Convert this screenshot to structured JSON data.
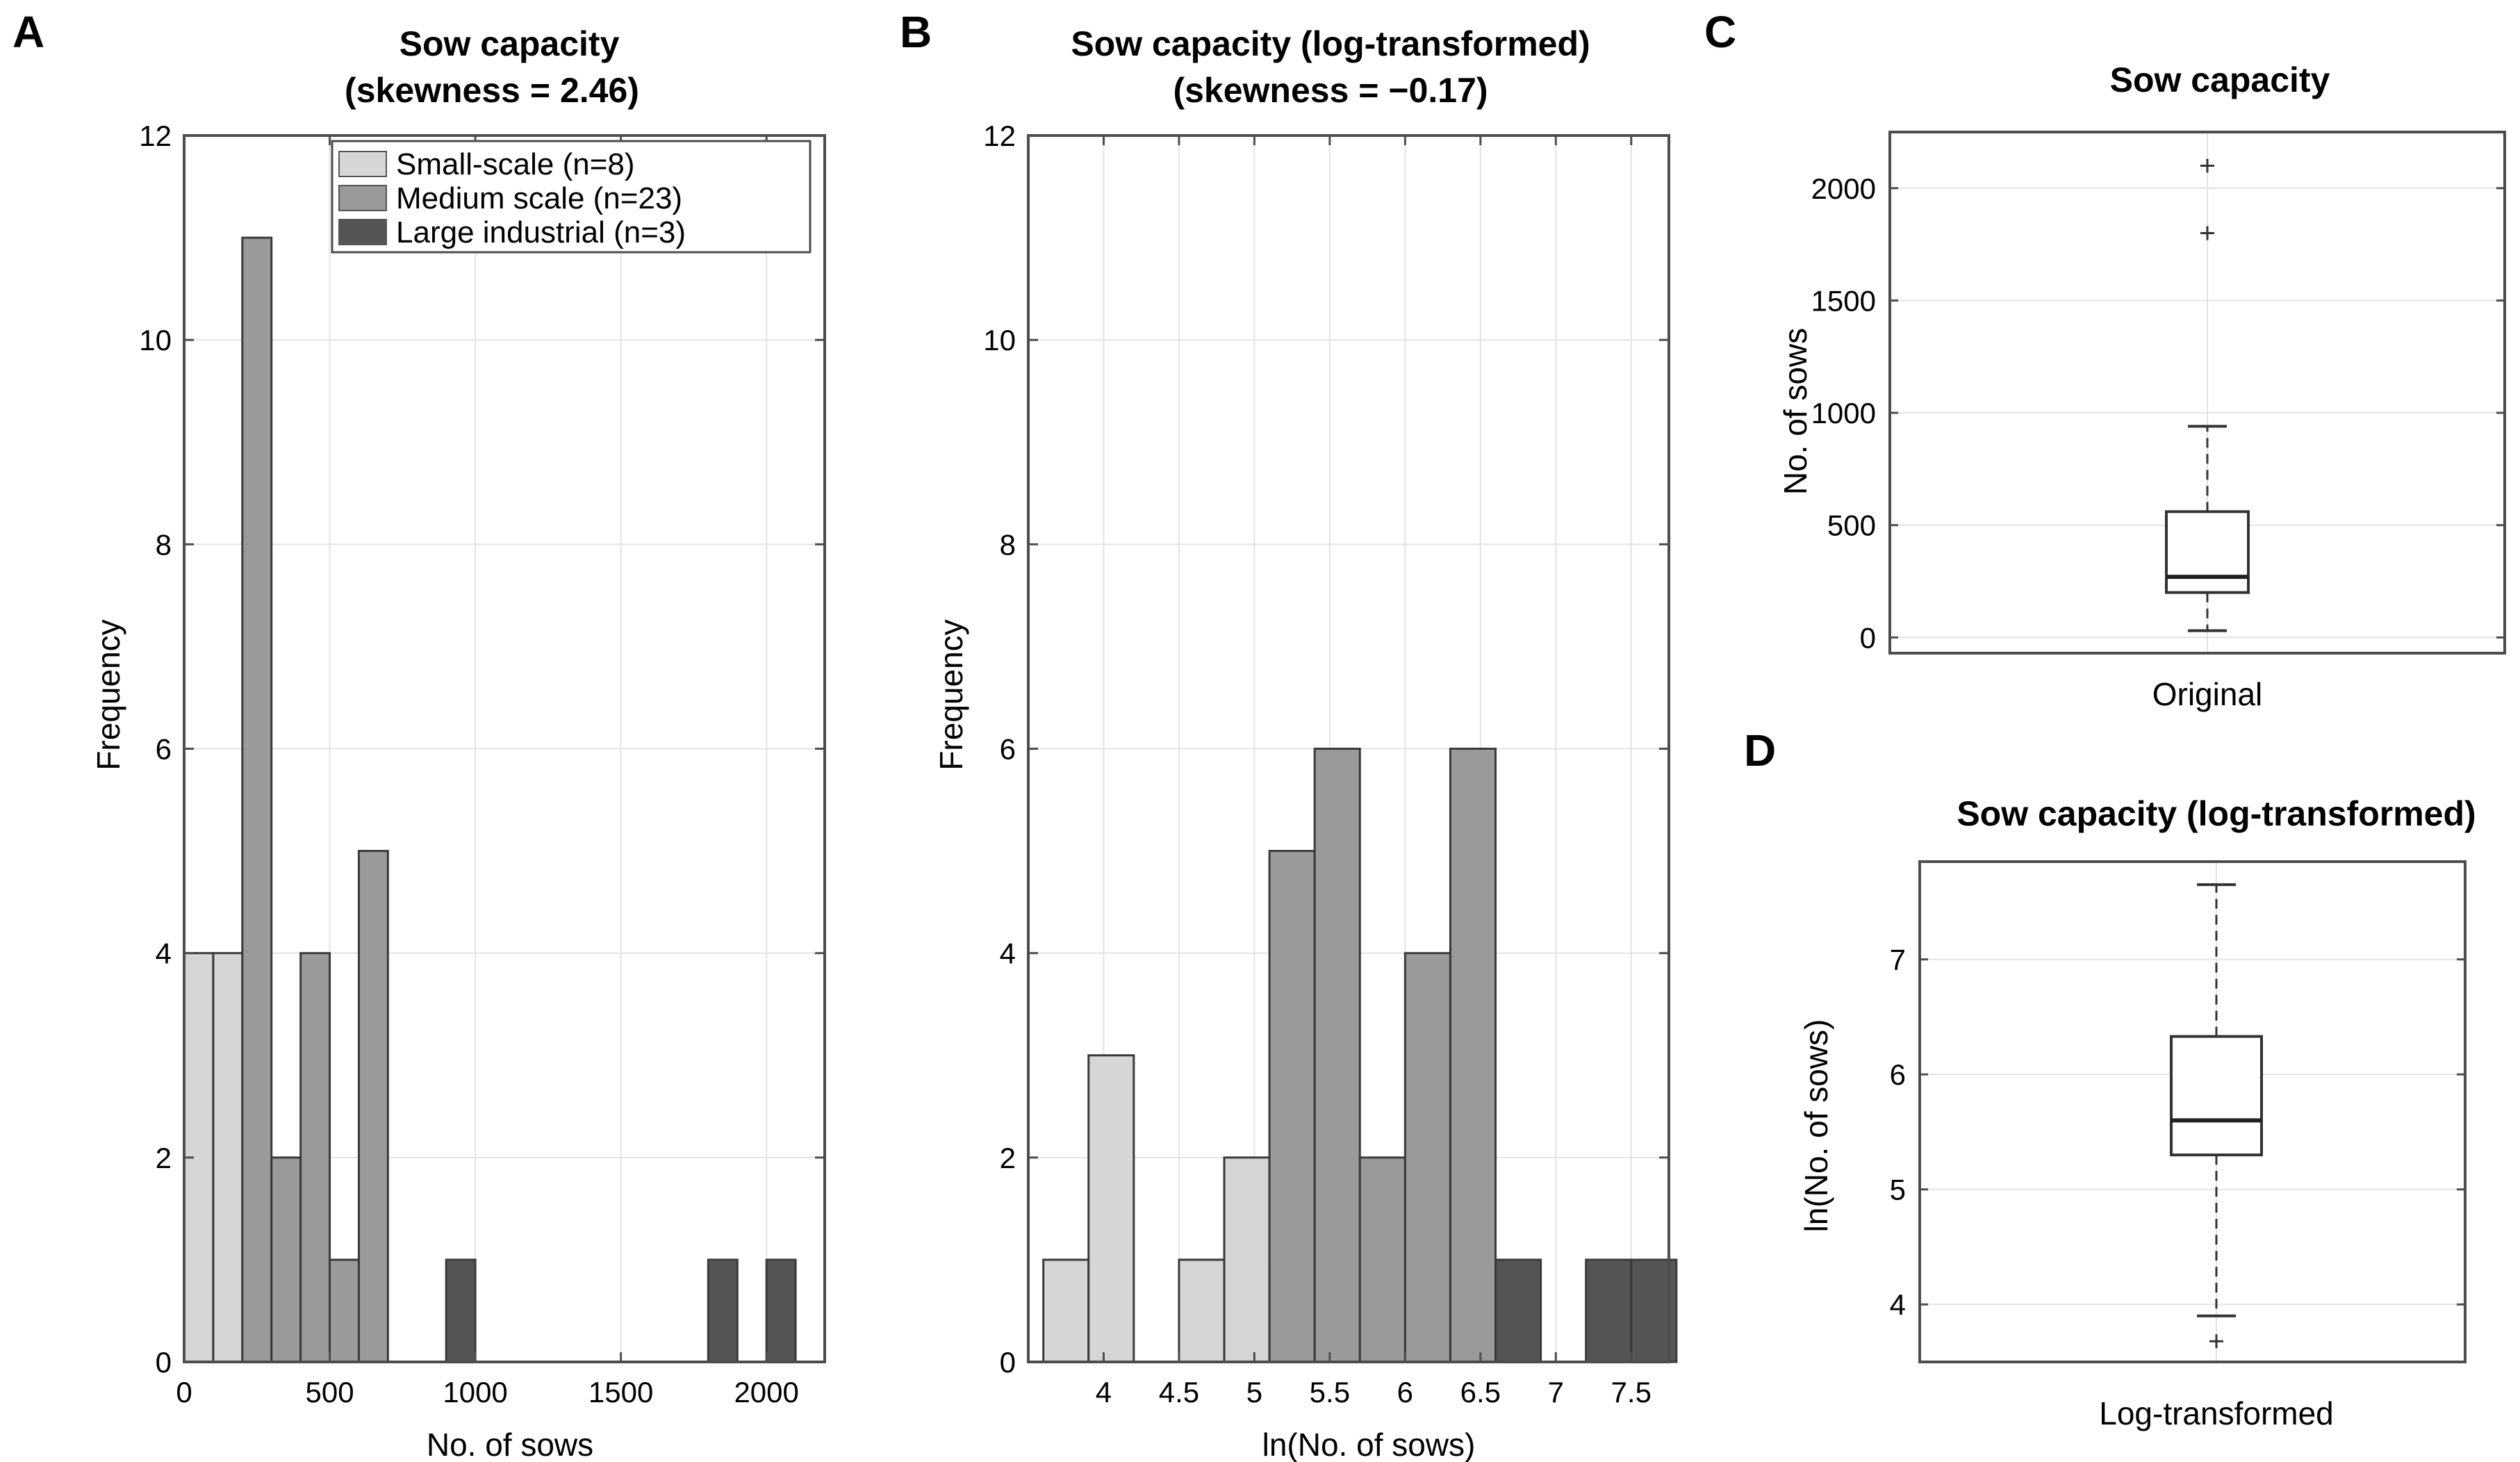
{
  "colors": {
    "small_scale": "#d6d6d6",
    "medium_scale": "#9a9a9a",
    "large_industrial": "#555555",
    "grid": "#e3e3e3",
    "axis": "#4d4d4d"
  },
  "chart_data": [
    {
      "panel": "A",
      "type": "bar",
      "title": "Sow capacity",
      "subtitle": "(skewness = 2.46)",
      "xlabel": "No. of sows",
      "ylabel": "Frequency",
      "xlim": [
        0,
        2200
      ],
      "ylim": [
        0,
        12
      ],
      "xticks": [
        0,
        500,
        1000,
        1500,
        2000
      ],
      "yticks": [
        0,
        2,
        4,
        6,
        8,
        10,
        12
      ],
      "grid": true,
      "legend_position": "top-right",
      "legend": [
        {
          "label": "Small-scale (n=8)",
          "group": "small_scale"
        },
        {
          "label": "Medium scale (n=23)",
          "group": "medium_scale"
        },
        {
          "label": "Large industrial (n=3)",
          "group": "large_industrial"
        }
      ],
      "bars": [
        {
          "x0": 0,
          "x1": 100,
          "value": 4,
          "group": "small_scale"
        },
        {
          "x0": 100,
          "x1": 200,
          "value": 4,
          "group": "small_scale"
        },
        {
          "x0": 200,
          "x1": 300,
          "value": 11,
          "group": "medium_scale"
        },
        {
          "x0": 300,
          "x1": 400,
          "value": 2,
          "group": "medium_scale"
        },
        {
          "x0": 400,
          "x1": 500,
          "value": 4,
          "group": "medium_scale"
        },
        {
          "x0": 500,
          "x1": 600,
          "value": 1,
          "group": "medium_scale"
        },
        {
          "x0": 600,
          "x1": 700,
          "value": 5,
          "group": "medium_scale"
        },
        {
          "x0": 900,
          "x1": 1000,
          "value": 1,
          "group": "large_industrial"
        },
        {
          "x0": 1800,
          "x1": 1900,
          "value": 1,
          "group": "large_industrial"
        },
        {
          "x0": 2000,
          "x1": 2100,
          "value": 1,
          "group": "large_industrial"
        }
      ]
    },
    {
      "panel": "B",
      "type": "bar",
      "title": "Sow capacity (log-transformed)",
      "subtitle": "(skewness = −0.17)",
      "xlabel": "ln(No. of sows)",
      "ylabel": "Frequency",
      "xlim": [
        3.5,
        7.75
      ],
      "ylim": [
        0,
        12
      ],
      "xticks": [
        4,
        4.5,
        5,
        5.5,
        6,
        6.5,
        7,
        7.5
      ],
      "xtick_labels": [
        "4",
        "4.5",
        "5",
        "5.5",
        "6",
        "6.5",
        "7",
        "7.5"
      ],
      "yticks": [
        0,
        2,
        4,
        6,
        8,
        10,
        12
      ],
      "grid": true,
      "bars": [
        {
          "x0": 3.6,
          "x1": 3.9,
          "value": 1,
          "group": "small_scale"
        },
        {
          "x0": 3.9,
          "x1": 4.2,
          "value": 3,
          "group": "small_scale"
        },
        {
          "x0": 4.5,
          "x1": 4.8,
          "value": 1,
          "group": "small_scale"
        },
        {
          "x0": 4.8,
          "x1": 5.1,
          "value": 2,
          "group": "small_scale"
        },
        {
          "x0": 5.1,
          "x1": 5.4,
          "value": 1,
          "group": "small_scale"
        },
        {
          "x0": 5.1,
          "x1": 5.4,
          "value": 5,
          "group": "medium_scale"
        },
        {
          "x0": 5.4,
          "x1": 5.7,
          "value": 6,
          "group": "medium_scale"
        },
        {
          "x0": 5.7,
          "x1": 6.0,
          "value": 2,
          "group": "medium_scale"
        },
        {
          "x0": 6.0,
          "x1": 6.3,
          "value": 4,
          "group": "medium_scale"
        },
        {
          "x0": 6.3,
          "x1": 6.6,
          "value": 6,
          "group": "medium_scale"
        },
        {
          "x0": 6.6,
          "x1": 6.9,
          "value": 1,
          "group": "large_industrial"
        },
        {
          "x0": 7.2,
          "x1": 7.5,
          "value": 1,
          "group": "large_industrial"
        },
        {
          "x0": 7.5,
          "x1": 7.8,
          "value": 1,
          "group": "large_industrial"
        }
      ]
    },
    {
      "panel": "C",
      "type": "box",
      "title": "Sow capacity",
      "xlabel": "Original",
      "ylabel": "No. of sows",
      "ylim": [
        -70,
        2250
      ],
      "yticks": [
        0,
        500,
        1000,
        1500,
        2000
      ],
      "grid": true,
      "box": {
        "whisker_low": 30,
        "q1": 200,
        "median": 270,
        "q3": 560,
        "whisker_high": 940,
        "outliers": [
          1800,
          2100
        ]
      }
    },
    {
      "panel": "D",
      "type": "box",
      "title": "Sow capacity (log-transformed)",
      "xlabel": "Log-transformed",
      "ylabel": "ln(No. of sows)",
      "ylim": [
        3.5,
        7.85
      ],
      "yticks": [
        4,
        5,
        6,
        7
      ],
      "grid": true,
      "box": {
        "whisker_low": 3.9,
        "q1": 5.3,
        "median": 5.6,
        "q3": 6.33,
        "whisker_high": 7.65,
        "outliers": [
          3.68
        ]
      }
    }
  ]
}
